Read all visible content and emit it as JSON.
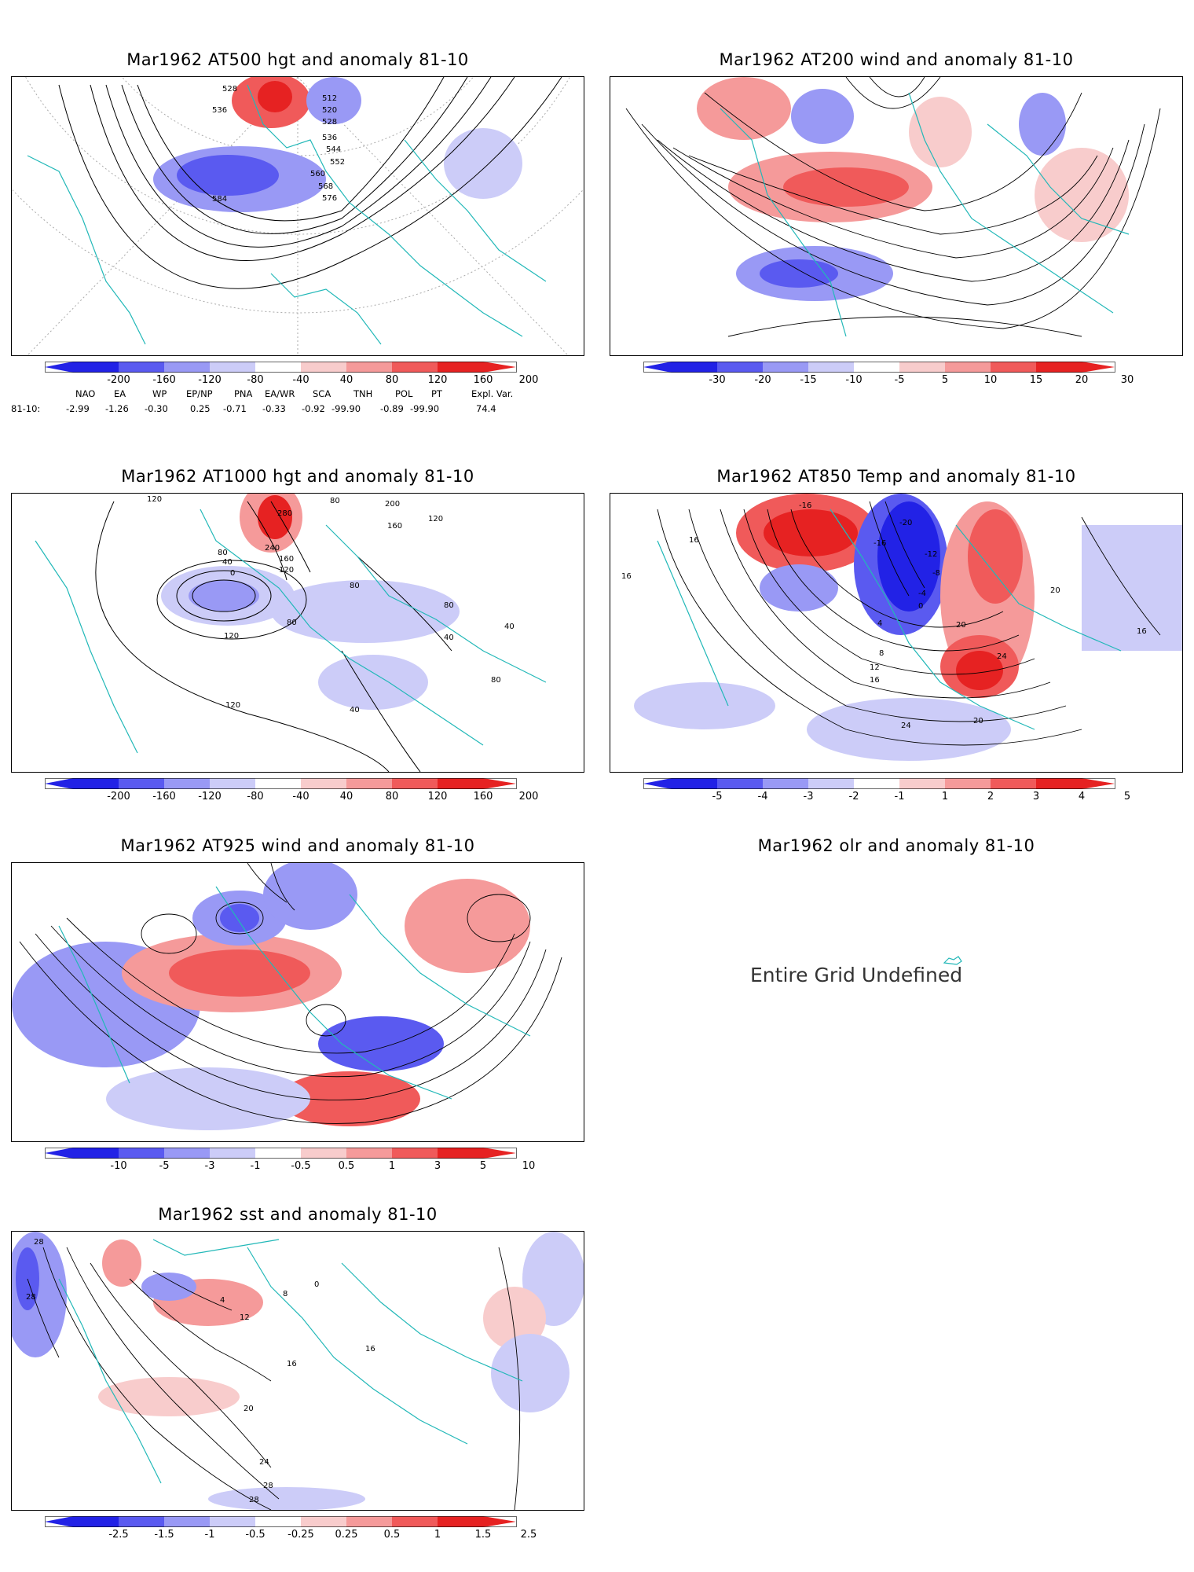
{
  "panels": [
    {
      "id": "p500",
      "title": "Mar1962 AT500 hgt and anomaly 81-10",
      "colorbar": [
        "-200",
        "-160",
        "-120",
        "-80",
        "-40",
        "40",
        "80",
        "120",
        "160",
        "200"
      ],
      "contour_labels": [
        "528",
        "536",
        "512",
        "520",
        "528",
        "536",
        "544",
        "552",
        "560",
        "568",
        "576",
        "584"
      ]
    },
    {
      "id": "p200",
      "title": "Mar1962 AT200 wind and anomaly 81-10",
      "colorbar": [
        "-30",
        "-20",
        "-15",
        "-10",
        "-5",
        "5",
        "10",
        "15",
        "20",
        "30"
      ]
    },
    {
      "id": "p1000",
      "title": "Mar1962 AT1000 hgt and anomaly 81-10",
      "colorbar": [
        "-200",
        "-160",
        "-120",
        "-80",
        "-40",
        "40",
        "80",
        "120",
        "160",
        "200"
      ],
      "contour_labels": [
        "120",
        "80",
        "200",
        "160",
        "120",
        "280",
        "240",
        "160",
        "120",
        "80",
        "40",
        "0",
        "80",
        "120",
        "80",
        "40",
        "80",
        "40",
        "120",
        "40",
        "80"
      ]
    },
    {
      "id": "p850",
      "title": "Mar1962 AT850 Temp and anomaly 81-10",
      "colorbar": [
        "-5",
        "-4",
        "-3",
        "-2",
        "-1",
        "1",
        "2",
        "3",
        "4",
        "5"
      ],
      "contour_labels": [
        "-16",
        "-20",
        "-16",
        "-12",
        "-8",
        "-4",
        "0",
        "4",
        "8",
        "12",
        "16",
        "20",
        "24",
        "24",
        "20",
        "16",
        "16",
        "20",
        "16"
      ]
    },
    {
      "id": "p925",
      "title": "Mar1962 AT925 wind and anomaly 81-10",
      "colorbar": [
        "-10",
        "-5",
        "-3",
        "-1",
        "-0.5",
        "0.5",
        "1",
        "3",
        "5",
        "10"
      ]
    },
    {
      "id": "polr",
      "title": "Mar1962 olr and anomaly 81-10",
      "message": "Entire Grid Undefined"
    },
    {
      "id": "psst",
      "title": "Mar1962 sst and anomaly 81-10",
      "colorbar": [
        "-2.5",
        "-1.5",
        "-1",
        "-0.5",
        "-0.25",
        "0.25",
        "0.5",
        "1",
        "1.5",
        "2.5"
      ],
      "contour_labels": [
        "28",
        "28",
        "4",
        "8",
        "12",
        "16",
        "20",
        "24",
        "28",
        "28",
        "16",
        "0"
      ]
    }
  ],
  "teleconnections": {
    "headers": [
      "NAO",
      "EA",
      "WP",
      "EP/NP",
      "PNA",
      "EA/WR",
      "SCA",
      "TNH",
      "POL",
      "PT",
      "Expl. Var."
    ],
    "row_label": "81-10:",
    "values": [
      "-2.99",
      "-1.26",
      "-0.30",
      "0.25",
      "-0.71",
      "-0.33",
      "-0.92",
      "-99.90",
      "-0.89",
      "-99.90",
      "74.4"
    ]
  },
  "colors": {
    "blue_strong": "#2222e6",
    "blue_mid": "#5a5af0",
    "blue_light": "#9999f5",
    "blue_pale": "#ccccf8",
    "red_pale": "#f8cccc",
    "red_light": "#f59a9a",
    "red_mid": "#f05a5a",
    "red_strong": "#e62222",
    "coast": "#22b8b8"
  }
}
